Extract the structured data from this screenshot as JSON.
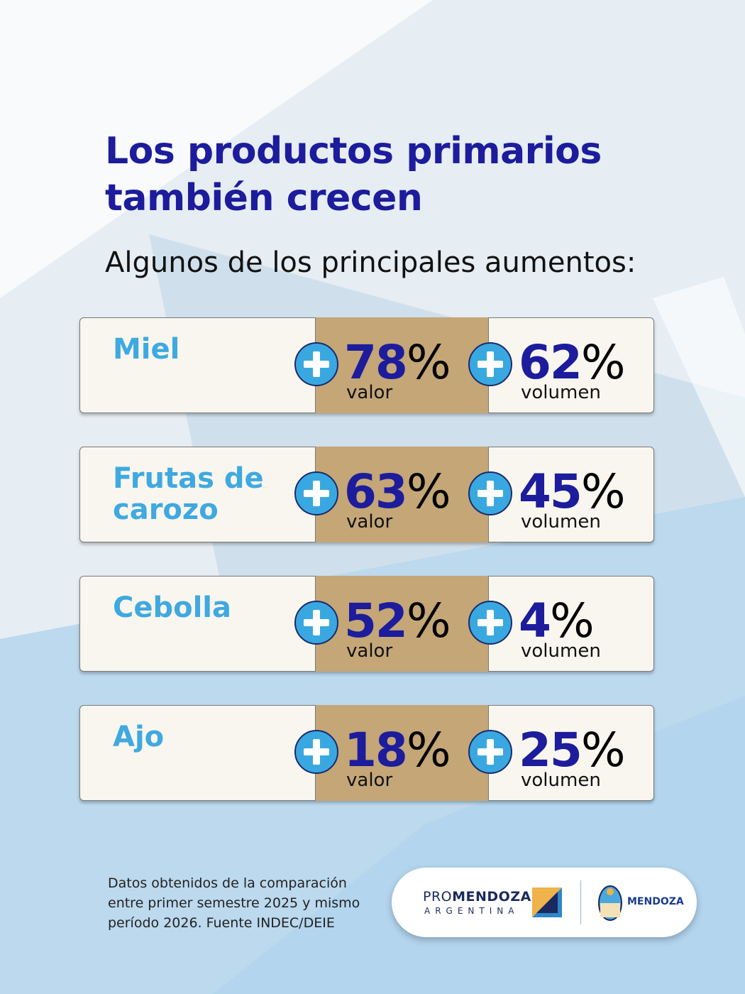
{
  "header": {
    "title": [
      "Los productos primarios",
      "también crecen"
    ],
    "subtitle": "Algunos de los principales aumentos:"
  },
  "rows": [
    {
      "product": [
        "Miel"
      ],
      "valor": {
        "number": 78,
        "unit": "%",
        "label": "valor"
      },
      "volumen": {
        "number": 62,
        "unit": "%",
        "label": "volumen"
      }
    },
    {
      "product": [
        "Frutas de",
        "carozo"
      ],
      "valor": {
        "number": 63,
        "unit": "%",
        "label": "valor"
      },
      "volumen": {
        "number": 45,
        "unit": "%",
        "label": "volumen"
      }
    },
    {
      "product": [
        "Cebolla"
      ],
      "valor": {
        "number": 52,
        "unit": "%",
        "label": "valor"
      },
      "volumen": {
        "number": 4,
        "unit": "%",
        "label": "volumen"
      }
    },
    {
      "product": [
        "Ajo"
      ],
      "valor": {
        "number": 18,
        "unit": "%",
        "label": "valor"
      },
      "volumen": {
        "number": 25,
        "unit": "%",
        "label": "volumen"
      }
    }
  ],
  "footnote": [
    "Datos obtenidos de la comparación",
    "entre primer semestre 2025 y mismo",
    "período 2026. Fuente INDEC/DEIE"
  ],
  "logo": {
    "prefix": "PRO",
    "brand": "MENDOZA",
    "country": "ARGENTINA",
    "government": "MENDOZA"
  }
}
